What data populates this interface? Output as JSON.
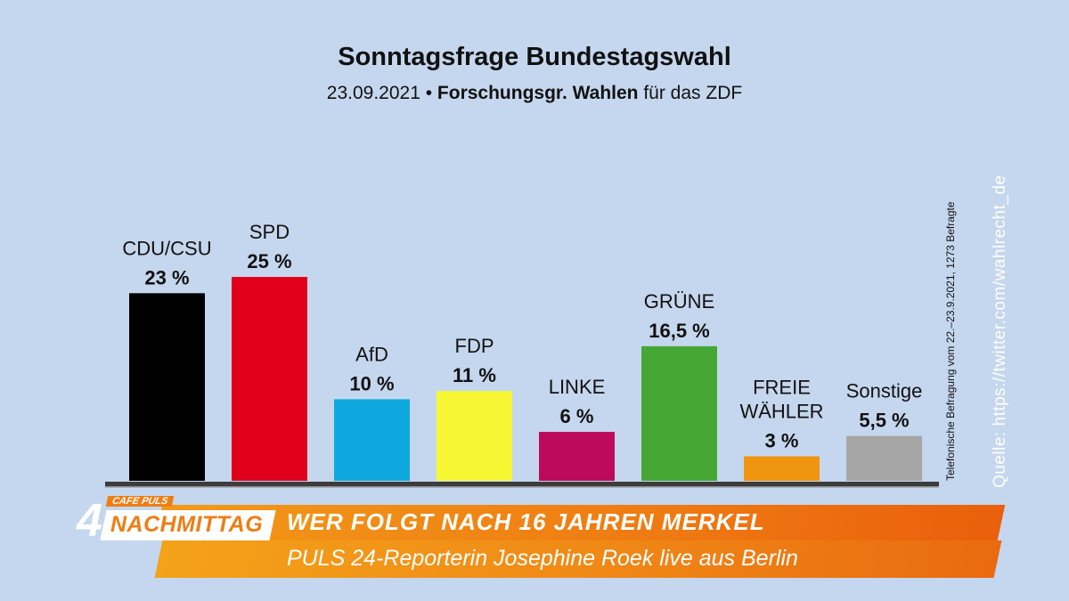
{
  "chart_data": {
    "type": "bar",
    "title": "Sonntagsfrage Bundestagswahl",
    "subtitle": {
      "date": "23.09.2021 •",
      "institute": "Forschungsgr. Wahlen",
      "suffix": "für das ZDF"
    },
    "categories": [
      "CDU/CSU",
      "SPD",
      "AfD",
      "FDP",
      "LINKE",
      "GRÜNE",
      "FREIE WÄHLER",
      "Sonstige"
    ],
    "values": [
      23,
      25,
      10,
      11,
      6,
      16.5,
      3,
      5.5
    ],
    "value_labels": [
      "23 %",
      "25 %",
      "10 %",
      "11 %",
      "6 %",
      "16,5 %",
      "3 %",
      "5,5 %"
    ],
    "colors": [
      "#000000",
      "#e0001b",
      "#0ea8df",
      "#f6f732",
      "#be0a5e",
      "#46a735",
      "#f0950f",
      "#a6a6a6"
    ],
    "ylim": [
      0,
      25
    ],
    "grid": false,
    "legend": "none",
    "annotation": "Telefonische Befragung vom 22.–23.9.2021, 1273 Befragte",
    "source": "Quelle:   https://twitter.com/wahlrecht_de"
  },
  "banner": {
    "logo_number": "4",
    "logo_small": "CAFE PULS",
    "logo_main": "NACHMITTAG",
    "headline": "WER FOLGT NACH 16 JAHREN MERKEL",
    "subline": "PULS 24-Reporterin Josephine Roek live aus Berlin"
  }
}
